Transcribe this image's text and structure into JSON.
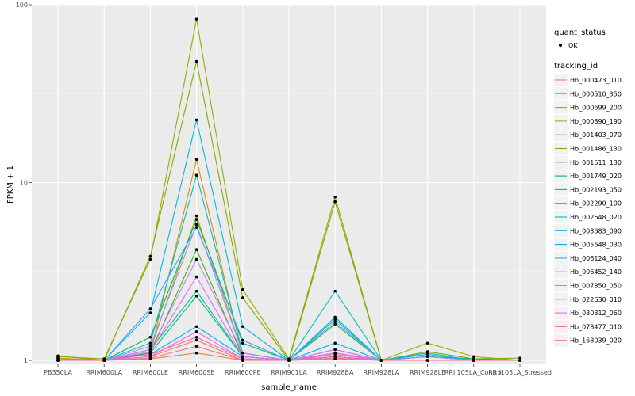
{
  "chart_data": {
    "type": "line",
    "xlabel": "sample_name",
    "ylabel": "FPKM + 1",
    "y_scale": "log10",
    "ylim": [
      0.95,
      100
    ],
    "y_ticks": [
      1,
      10,
      100
    ],
    "y_tick_labels": [
      "1",
      "10",
      "100"
    ],
    "grid": true,
    "legend_placement": "right",
    "categories": [
      "PB350LA",
      "RRIM600LA",
      "RRIM600LE",
      "RRIM600SE",
      "RRIM600PE",
      "RRIM901LA",
      "RRIM928BA",
      "RRIM928LA",
      "RRIM928LE",
      "RRII105LA_Control",
      "RRII105LA_Stressed"
    ],
    "quant_status_legend": {
      "title": "quant_status",
      "entries": [
        "OK"
      ]
    },
    "series_legend_title": "tracking_id",
    "series": [
      {
        "name": "Hb_000473_010",
        "color": "#F8766D",
        "values": [
          1.0,
          1.0,
          1.05,
          1.3,
          1.0,
          1.0,
          1.05,
          1.0,
          1.0,
          1.0,
          1.0
        ]
      },
      {
        "name": "Hb_000510_350",
        "color": "#EA8331",
        "values": [
          1.0,
          1.0,
          1.02,
          1.1,
          1.0,
          1.0,
          1.02,
          1.0,
          1.0,
          1.0,
          1.0
        ]
      },
      {
        "name": "Hb_000699_200",
        "color": "#D89000",
        "values": [
          1.02,
          1.0,
          1.1,
          13.5,
          1.05,
          1.0,
          1.1,
          1.0,
          1.05,
          1.0,
          1.0
        ]
      },
      {
        "name": "Hb_000890_190",
        "color": "#C09B00",
        "values": [
          1.03,
          1.0,
          1.15,
          6.5,
          1.1,
          1.0,
          1.15,
          1.0,
          1.05,
          1.0,
          1.0
        ]
      },
      {
        "name": "Hb_001403_070",
        "color": "#A3A500",
        "values": [
          1.05,
          1.02,
          3.7,
          83,
          2.5,
          1.02,
          8.3,
          1.0,
          1.25,
          1.05,
          1.0
        ]
      },
      {
        "name": "Hb_001486_130",
        "color": "#7CAE00",
        "values": [
          1.06,
          1.0,
          3.85,
          48,
          2.25,
          1.0,
          7.8,
          1.0,
          1.12,
          1.02,
          1.03
        ]
      },
      {
        "name": "Hb_001511_130",
        "color": "#39B600",
        "values": [
          1.0,
          1.0,
          1.1,
          4.2,
          1.05,
          1.0,
          1.05,
          1.0,
          1.0,
          1.0,
          1.0
        ]
      },
      {
        "name": "Hb_001749_020",
        "color": "#00BB4E",
        "values": [
          1.0,
          1.0,
          1.35,
          6.2,
          1.25,
          1.0,
          1.6,
          1.0,
          1.05,
          1.02,
          1.0
        ]
      },
      {
        "name": "Hb_002193_050",
        "color": "#00BF7D",
        "values": [
          1.0,
          1.0,
          1.1,
          2.3,
          1.05,
          1.0,
          1.1,
          1.0,
          1.0,
          1.0,
          1.0
        ]
      },
      {
        "name": "Hb_002290_100",
        "color": "#00C1A3",
        "values": [
          1.0,
          1.0,
          1.15,
          2.45,
          1.05,
          1.0,
          1.7,
          1.0,
          1.05,
          1.0,
          1.0
        ]
      },
      {
        "name": "Hb_002648_020",
        "color": "#00BFC4",
        "values": [
          1.0,
          1.0,
          1.25,
          11.0,
          1.1,
          1.0,
          2.45,
          1.0,
          1.1,
          1.0,
          1.0
        ]
      },
      {
        "name": "Hb_003683_090",
        "color": "#00BAE0",
        "values": [
          1.0,
          1.0,
          1.85,
          22.5,
          1.55,
          1.0,
          1.75,
          1.0,
          1.08,
          1.0,
          1.0
        ]
      },
      {
        "name": "Hb_005648_030",
        "color": "#00B0F6",
        "values": [
          1.0,
          1.0,
          1.08,
          1.55,
          1.05,
          1.0,
          1.25,
          1.0,
          1.05,
          1.0,
          1.0
        ]
      },
      {
        "name": "Hb_006124_040",
        "color": "#35A2FF",
        "values": [
          1.0,
          1.0,
          1.95,
          5.6,
          1.3,
          1.0,
          1.05,
          1.0,
          1.05,
          1.0,
          1.0
        ]
      },
      {
        "name": "Hb_006452_140",
        "color": "#9590FF",
        "values": [
          1.0,
          1.0,
          1.2,
          5.8,
          1.1,
          1.0,
          1.65,
          1.0,
          1.05,
          1.0,
          1.0
        ]
      },
      {
        "name": "Hb_007850_050",
        "color": "#C77CFF",
        "values": [
          1.0,
          1.0,
          1.15,
          3.7,
          1.1,
          1.0,
          1.15,
          1.0,
          1.0,
          1.0,
          1.0
        ]
      },
      {
        "name": "Hb_022630_010",
        "color": "#E76BF3",
        "values": [
          1.0,
          1.0,
          1.12,
          2.95,
          1.05,
          1.0,
          1.1,
          1.0,
          1.0,
          1.0,
          1.0
        ]
      },
      {
        "name": "Hb_030312_060",
        "color": "#FA62DB",
        "values": [
          1.0,
          1.0,
          1.05,
          1.45,
          1.02,
          1.0,
          1.08,
          1.0,
          1.0,
          1.0,
          1.0
        ]
      },
      {
        "name": "Hb_078477_010",
        "color": "#FF62BC",
        "values": [
          1.0,
          1.0,
          1.08,
          1.35,
          1.02,
          1.0,
          1.05,
          1.0,
          1.0,
          1.0,
          1.0
        ]
      },
      {
        "name": "Hb_168039_020",
        "color": "#FF6C91",
        "values": [
          1.0,
          1.0,
          1.03,
          1.2,
          1.0,
          1.0,
          1.03,
          1.0,
          1.0,
          1.0,
          1.0
        ]
      }
    ]
  }
}
